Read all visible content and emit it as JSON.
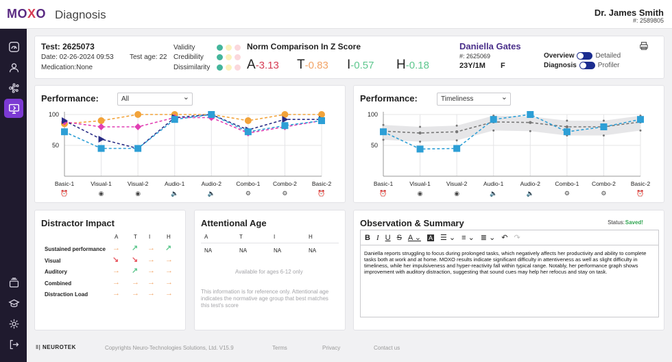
{
  "header": {
    "logo": "MOXO",
    "app_name": "Diagnosis",
    "doctor_name": "Dr. James Smith",
    "doctor_id": "#: 2589805"
  },
  "sidebar": {
    "items": [
      {
        "icon": "dashboard-gauge-icon"
      },
      {
        "icon": "user-icon"
      },
      {
        "icon": "network-nodes-icon"
      },
      {
        "icon": "monitor-report-icon",
        "active": true
      },
      {
        "icon": "cards-stack-icon"
      },
      {
        "icon": "graduation-cap-icon"
      },
      {
        "icon": "gear-icon"
      },
      {
        "icon": "logout-icon"
      }
    ]
  },
  "test_info": {
    "test_label": "Test: 2625073",
    "date": "Date: 02-26-2024 09:53",
    "test_age": "Test age: 22",
    "medication": "Medication:None",
    "validity_label": "Validity",
    "credibility_label": "Credibility",
    "dissimilarity_label": "Dissimilarity"
  },
  "norm": {
    "title": "Norm Comparison In Z Score",
    "items": [
      {
        "letter": "A",
        "value": "-3.13",
        "color": "#d63b53"
      },
      {
        "letter": "T",
        "value": "-0.83",
        "color": "#f2a365"
      },
      {
        "letter": "I",
        "value": "-0.57",
        "color": "#5ec78e"
      },
      {
        "letter": "H",
        "value": "-0.18",
        "color": "#5ec78e"
      }
    ]
  },
  "patient": {
    "name": "Daniella Gates",
    "id": "#: 2625069",
    "age": "23Y/1M",
    "gender": "F",
    "overview_label": "Overview",
    "detailed_label": "Detailed",
    "diagnosis_label": "Diagnosis",
    "profiler_label": "Profiler"
  },
  "performance_left": {
    "title": "Performance:",
    "select_value": "All"
  },
  "performance_right": {
    "title": "Performance:",
    "select_value": "Timeliness"
  },
  "chart_data": [
    {
      "type": "line",
      "categories": [
        "Basic-1",
        "Visual-1",
        "Visual-2",
        "Audio-1",
        "Audio-2",
        "Combo-1",
        "Combo-2",
        "Basic-2"
      ],
      "ylim": [
        0,
        100
      ],
      "yticks": [
        0,
        50,
        100
      ],
      "series": [
        {
          "values": [
            85,
            90,
            100,
            100,
            100,
            90,
            100,
            100
          ],
          "color": "#f2a33a",
          "marker": "circle"
        },
        {
          "values": [
            88,
            80,
            80,
            95,
            95,
            70,
            80,
            90
          ],
          "color": "#e13fb3",
          "marker": "diamond"
        },
        {
          "values": [
            90,
            60,
            45,
            95,
            100,
            75,
            92,
            92
          ],
          "color": "#2a2d86",
          "marker": "triangle"
        },
        {
          "values": [
            72,
            45,
            45,
            92,
            100,
            72,
            82,
            90
          ],
          "color": "#2d9fd6",
          "marker": "square"
        }
      ]
    },
    {
      "type": "line",
      "categories": [
        "Basic-1",
        "Visual-1",
        "Visual-2",
        "Audio-1",
        "Audio-2",
        "Combo-1",
        "Combo-2",
        "Basic-2"
      ],
      "ylim": [
        0,
        100
      ],
      "yticks": [
        0,
        50,
        100
      ],
      "series": [
        {
          "values": [
            73,
            70,
            72,
            88,
            87,
            80,
            80,
            88
          ],
          "color": "#777777",
          "marker": "circle"
        },
        {
          "values": [
            72,
            44,
            45,
            92,
            100,
            72,
            80,
            92
          ],
          "color": "#2d9fd6",
          "marker": "square"
        }
      ]
    }
  ],
  "distractor": {
    "title": "Distractor Impact",
    "columns": [
      "A",
      "T",
      "I",
      "H"
    ],
    "rows": [
      {
        "label": "Sustained performance",
        "arrows": [
          "→",
          "↗",
          "→",
          "↗"
        ],
        "colors": [
          "#f2a365",
          "#5ec78e",
          "#f2a365",
          "#5ec78e"
        ]
      },
      {
        "label": "Visual",
        "arrows": [
          "↘",
          "↘",
          "→",
          "→"
        ],
        "colors": [
          "#e8555f",
          "#e8555f",
          "#f2a365",
          "#f2a365"
        ]
      },
      {
        "label": "Auditory",
        "arrows": [
          "→",
          "↗",
          "→",
          "→"
        ],
        "colors": [
          "#f2a365",
          "#5ec78e",
          "#f2a365",
          "#f2a365"
        ]
      },
      {
        "label": "Combined",
        "arrows": [
          "→",
          "→",
          "→",
          "→"
        ],
        "colors": [
          "#f2a365",
          "#f2a365",
          "#f2a365",
          "#f2a365"
        ]
      },
      {
        "label": "Distraction Load",
        "arrows": [
          "→",
          "→",
          "→",
          "→"
        ],
        "colors": [
          "#f2a365",
          "#f2a365",
          "#f2a365",
          "#f2a365"
        ]
      }
    ]
  },
  "attentional_age": {
    "title": "Attentional Age",
    "columns": [
      "A",
      "T",
      "I",
      "H"
    ],
    "values": [
      "NA",
      "NA",
      "NA",
      "NA"
    ],
    "available_note": "Available for ages 6-12 only",
    "info_line1": "This information is for reference only. Attentional age",
    "info_line2": "indicates the normative age group that best matches",
    "info_line3": "this test's score"
  },
  "observation": {
    "title": "Observation & Summary",
    "status_label": "Status:",
    "status_value": "Saved!",
    "text": "Daniella reports struggling to focus during prolonged tasks, which negatively affects her productivity and ability to complete tasks both at work and at home. MOXO results indicate significant difficulty in attentiveness as well as slight difficulty in timeliness, while her impulsiveness and hyper-reactivity fall within typical range. Notably, her performance graph shows improvement with auditory distraction, suggesting that sound cues may help her refocus and stay on task."
  },
  "footer": {
    "brand": "NEUROTEK",
    "copyright": "Copyrights Neuro-Technologies Solutions, Ltd. V15.9",
    "terms": "Terms",
    "privacy": "Privacy",
    "contact": "Contact us"
  },
  "colors": {
    "accent": "#7c3ad3",
    "sidebar_bg": "#1f1a2e",
    "brand_purple": "#5a2a82",
    "brand_red": "#d63b53"
  }
}
